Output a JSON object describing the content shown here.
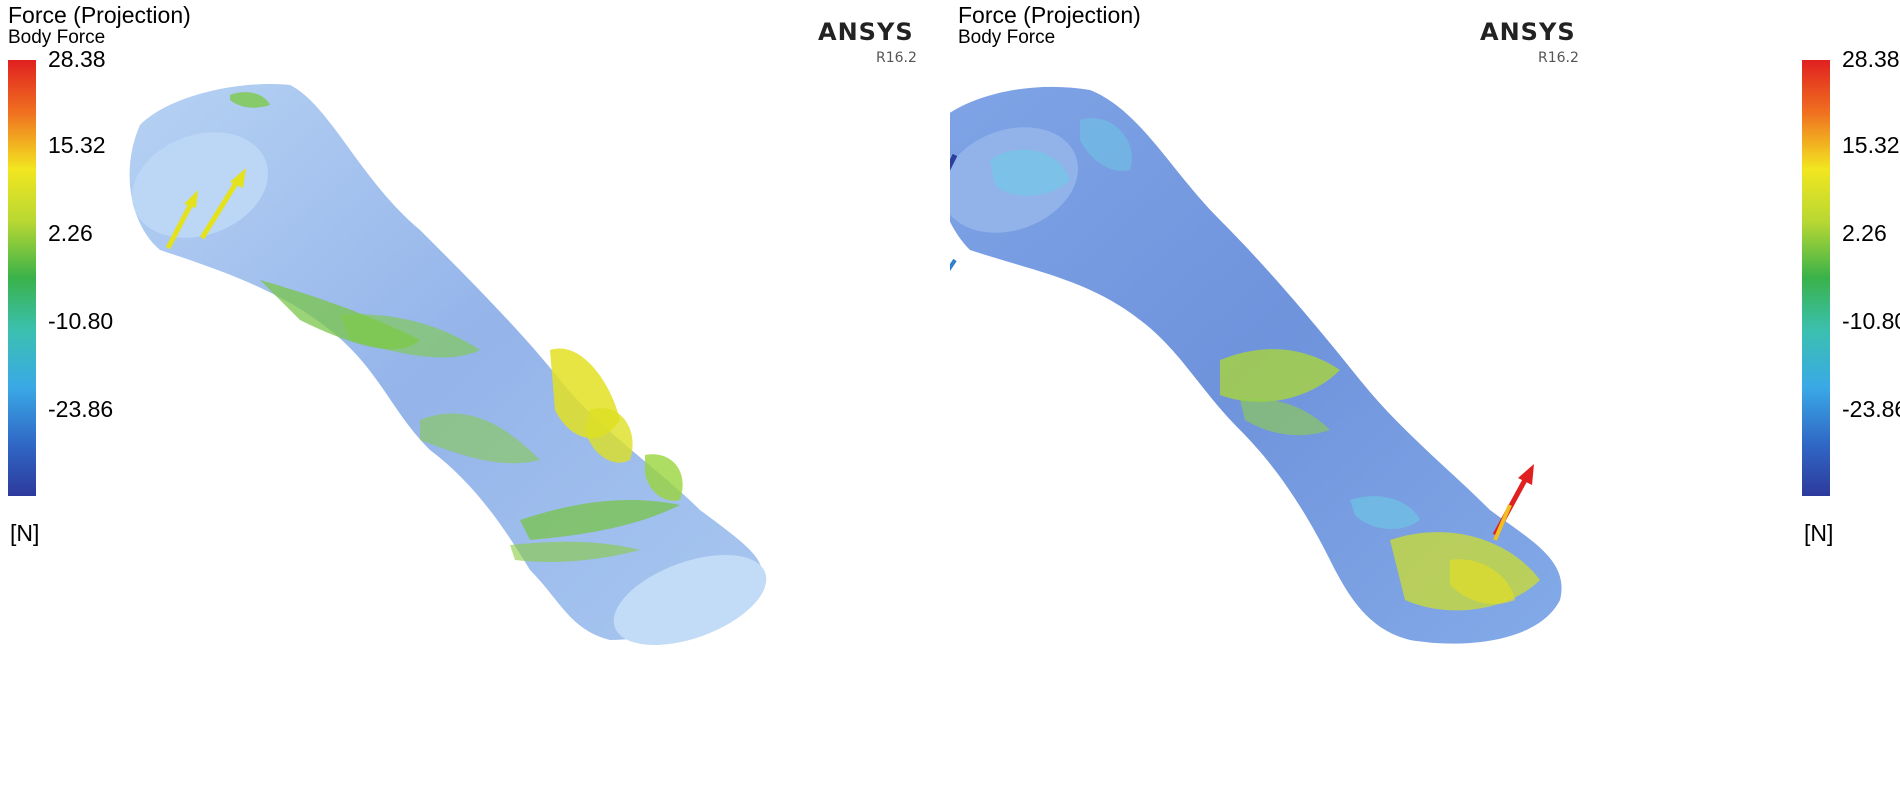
{
  "panels": [
    {
      "title": "Force (Projection)",
      "subtitle": "Body Force",
      "legend": [
        "28.38",
        "15.32",
        "2.26",
        "-10.80",
        "-23.86"
      ],
      "unit": "[N]",
      "logo": "ANSYS",
      "version": "R16.2"
    },
    {
      "title": "Force (Projection)",
      "subtitle": "Body Force",
      "legend": [
        "28.38",
        "15.32",
        "2.26",
        "-10.80",
        "-23.86"
      ],
      "unit": "[N]",
      "logo": "ANSYS",
      "version": "R16.2"
    }
  ],
  "colors": {
    "bone_base": "#8fb0e8",
    "bone_light": "#b8d3f4",
    "force_green": "#7ac943",
    "force_yellow": "#e6e21e",
    "force_cyan": "#6cc9e6",
    "force_blue": "#3a55b6",
    "force_red": "#e02020"
  }
}
